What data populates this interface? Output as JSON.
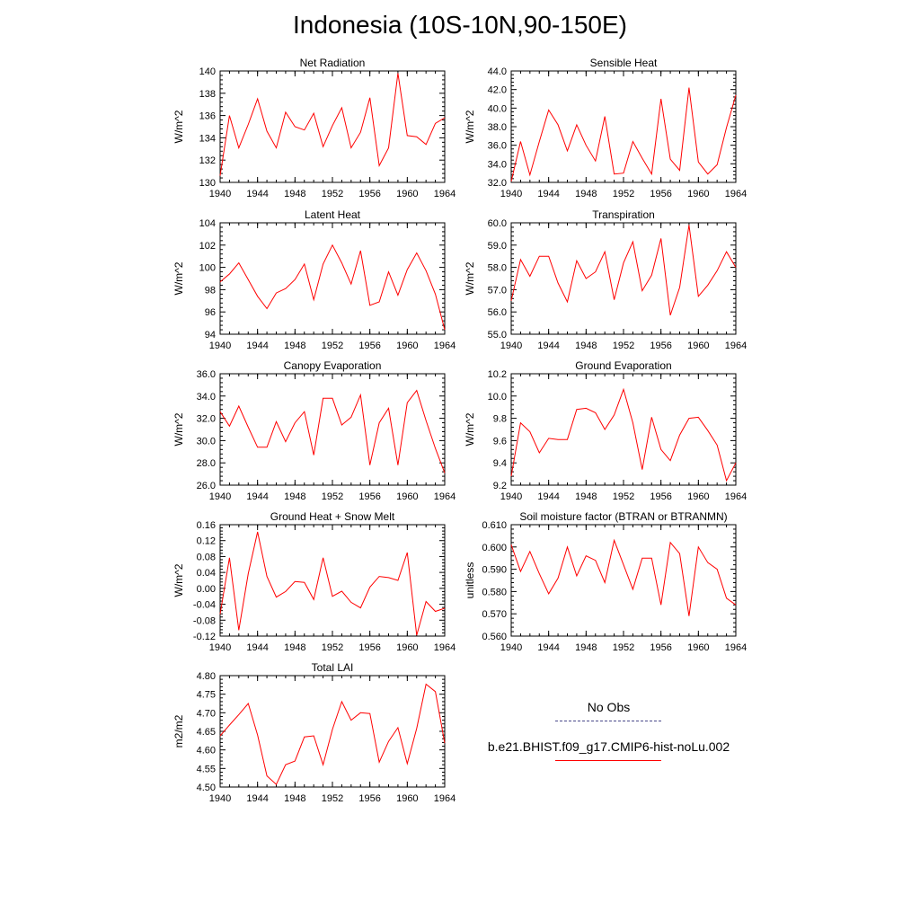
{
  "figure": {
    "title": "Indonesia (10S-10N,90-150E)"
  },
  "legend": [
    {
      "label": "No Obs",
      "style": "dashed",
      "color": "#4a4a8a"
    },
    {
      "label": "b.e21.BHIST.f09_g17.CMIP6-hist-noLu.002",
      "style": "solid",
      "color": "#ff0000"
    }
  ],
  "chart_data": [
    {
      "type": "line",
      "title": "Net Radiation",
      "ylabel": "W/m^2",
      "xlim": [
        1940,
        1964
      ],
      "ylim": [
        130,
        140
      ],
      "xticks": [
        "1940",
        "1944",
        "1948",
        "1952",
        "1956",
        "1960",
        "1964"
      ],
      "yticks": [
        "130",
        "132",
        "134",
        "136",
        "138",
        "140"
      ],
      "series": [
        {
          "color": "#ff0000",
          "x": [
            1940,
            1941,
            1942,
            1943,
            1944,
            1945,
            1946,
            1947,
            1948,
            1949,
            1950,
            1951,
            1952,
            1953,
            1954,
            1955,
            1956,
            1957,
            1958,
            1959,
            1960,
            1961,
            1962,
            1963,
            1964
          ],
          "values": [
            130.6,
            136.0,
            133.1,
            135.2,
            137.5,
            134.6,
            133.1,
            136.3,
            135.0,
            134.7,
            136.2,
            133.2,
            135.1,
            136.7,
            133.1,
            134.5,
            137.6,
            131.5,
            133.1,
            139.8,
            134.2,
            134.1,
            133.4,
            135.3,
            135.8
          ]
        }
      ]
    },
    {
      "type": "line",
      "title": "Sensible Heat",
      "ylabel": "W/m^2",
      "xlim": [
        1940,
        1964
      ],
      "ylim": [
        32,
        44
      ],
      "xticks": [
        "1940",
        "1944",
        "1948",
        "1952",
        "1956",
        "1960",
        "1964"
      ],
      "yticks": [
        "32.0",
        "34.0",
        "36.0",
        "38.0",
        "40.0",
        "42.0",
        "44.0"
      ],
      "series": [
        {
          "color": "#ff0000",
          "x": [
            1940,
            1941,
            1942,
            1943,
            1944,
            1945,
            1946,
            1947,
            1948,
            1949,
            1950,
            1951,
            1952,
            1953,
            1954,
            1955,
            1956,
            1957,
            1958,
            1959,
            1960,
            1961,
            1962,
            1963,
            1964
          ],
          "values": [
            32.1,
            36.4,
            32.8,
            36.4,
            39.8,
            38.2,
            35.4,
            38.2,
            36.0,
            34.3,
            39.1,
            32.9,
            33.0,
            36.4,
            34.6,
            32.9,
            41.0,
            34.5,
            33.3,
            42.2,
            34.2,
            32.9,
            33.9,
            37.9,
            41.4
          ]
        }
      ]
    },
    {
      "type": "line",
      "title": "Latent Heat",
      "ylabel": "W/m^2",
      "xlim": [
        1940,
        1964
      ],
      "ylim": [
        94,
        104
      ],
      "xticks": [
        "1940",
        "1944",
        "1948",
        "1952",
        "1956",
        "1960",
        "1964"
      ],
      "yticks": [
        "94",
        "96",
        "98",
        "100",
        "102",
        "104"
      ],
      "series": [
        {
          "color": "#ff0000",
          "x": [
            1940,
            1941,
            1942,
            1943,
            1944,
            1945,
            1946,
            1947,
            1948,
            1949,
            1950,
            1951,
            1952,
            1953,
            1954,
            1955,
            1956,
            1957,
            1958,
            1959,
            1960,
            1961,
            1962,
            1963,
            1964
          ],
          "values": [
            98.7,
            99.4,
            100.4,
            98.9,
            97.4,
            96.3,
            97.7,
            98.1,
            98.9,
            100.3,
            97.1,
            100.3,
            102.0,
            100.4,
            98.5,
            101.5,
            96.6,
            96.9,
            99.6,
            97.5,
            99.8,
            101.3,
            99.7,
            97.6,
            94.4
          ]
        }
      ]
    },
    {
      "type": "line",
      "title": "Transpiration",
      "ylabel": "W/m^2",
      "xlim": [
        1940,
        1964
      ],
      "ylim": [
        55,
        60
      ],
      "xticks": [
        "1940",
        "1944",
        "1948",
        "1952",
        "1956",
        "1960",
        "1964"
      ],
      "yticks": [
        "55.0",
        "56.0",
        "57.0",
        "58.0",
        "59.0",
        "60.0"
      ],
      "series": [
        {
          "color": "#ff0000",
          "x": [
            1940,
            1941,
            1942,
            1943,
            1944,
            1945,
            1946,
            1947,
            1948,
            1949,
            1950,
            1951,
            1952,
            1953,
            1954,
            1955,
            1956,
            1957,
            1958,
            1959,
            1960,
            1961,
            1962,
            1963,
            1964
          ],
          "values": [
            56.5,
            58.35,
            57.6,
            58.5,
            58.5,
            57.3,
            56.45,
            58.3,
            57.5,
            57.8,
            58.7,
            56.55,
            58.2,
            59.15,
            56.95,
            57.65,
            59.3,
            55.85,
            57.1,
            59.9,
            56.7,
            57.2,
            57.85,
            58.7,
            58.0
          ]
        }
      ]
    },
    {
      "type": "line",
      "title": "Canopy Evaporation",
      "ylabel": "W/m^2",
      "xlim": [
        1940,
        1964
      ],
      "ylim": [
        26,
        36
      ],
      "xticks": [
        "1940",
        "1944",
        "1948",
        "1952",
        "1956",
        "1960",
        "1964"
      ],
      "yticks": [
        "26.0",
        "28.0",
        "30.0",
        "32.0",
        "34.0",
        "36.0"
      ],
      "series": [
        {
          "color": "#ff0000",
          "x": [
            1940,
            1941,
            1942,
            1943,
            1944,
            1945,
            1946,
            1947,
            1948,
            1949,
            1950,
            1951,
            1952,
            1953,
            1954,
            1955,
            1956,
            1957,
            1958,
            1959,
            1960,
            1961,
            1962,
            1963,
            1964
          ],
          "values": [
            32.6,
            31.3,
            33.1,
            31.2,
            29.4,
            29.4,
            31.7,
            29.9,
            31.6,
            32.6,
            28.7,
            33.8,
            33.8,
            31.4,
            32.1,
            34.1,
            27.8,
            31.6,
            32.9,
            27.8,
            33.4,
            34.5,
            31.8,
            29.3,
            27.1
          ]
        }
      ]
    },
    {
      "type": "line",
      "title": "Ground Evaporation",
      "ylabel": "W/m^2",
      "xlim": [
        1940,
        1964
      ],
      "ylim": [
        9.2,
        10.2
      ],
      "xticks": [
        "1940",
        "1944",
        "1948",
        "1952",
        "1956",
        "1960",
        "1964"
      ],
      "yticks": [
        "9.2",
        "9.4",
        "9.6",
        "9.8",
        "10.0",
        "10.2"
      ],
      "series": [
        {
          "color": "#ff0000",
          "x": [
            1940,
            1941,
            1942,
            1943,
            1944,
            1945,
            1946,
            1947,
            1948,
            1949,
            1950,
            1951,
            1952,
            1953,
            1954,
            1955,
            1956,
            1957,
            1958,
            1959,
            1960,
            1961,
            1962,
            1963,
            1964
          ],
          "values": [
            9.28,
            9.76,
            9.68,
            9.49,
            9.62,
            9.61,
            9.61,
            9.88,
            9.89,
            9.85,
            9.7,
            9.83,
            10.06,
            9.76,
            9.34,
            9.81,
            9.52,
            9.42,
            9.65,
            9.8,
            9.81,
            9.69,
            9.56,
            9.24,
            9.4
          ]
        }
      ]
    },
    {
      "type": "line",
      "title": "Ground Heat + Snow Melt",
      "ylabel": "W/m^2",
      "xlim": [
        1940,
        1964
      ],
      "ylim": [
        -0.12,
        0.16
      ],
      "xticks": [
        "1940",
        "1944",
        "1948",
        "1952",
        "1956",
        "1960",
        "1964"
      ],
      "yticks": [
        "-0.12",
        "-0.08",
        "-0.04",
        "0.00",
        "0.04",
        "0.08",
        "0.12",
        "0.16"
      ],
      "series": [
        {
          "color": "#ff0000",
          "x": [
            1940,
            1941,
            1942,
            1943,
            1944,
            1945,
            1946,
            1947,
            1948,
            1949,
            1950,
            1951,
            1952,
            1953,
            1954,
            1955,
            1956,
            1957,
            1958,
            1959,
            1960,
            1961,
            1962,
            1963,
            1964
          ],
          "values": [
            -0.065,
            0.077,
            -0.105,
            0.037,
            0.142,
            0.03,
            -0.022,
            -0.008,
            0.017,
            0.015,
            -0.028,
            0.077,
            -0.02,
            -0.007,
            -0.035,
            -0.049,
            0.003,
            0.03,
            0.027,
            0.02,
            0.09,
            -0.118,
            -0.033,
            -0.058,
            -0.05
          ]
        }
      ]
    },
    {
      "type": "line",
      "title": "Soil moisture factor (BTRAN or BTRANMN)",
      "ylabel": "unitless",
      "xlim": [
        1940,
        1964
      ],
      "ylim": [
        0.56,
        0.61
      ],
      "xticks": [
        "1940",
        "1944",
        "1948",
        "1952",
        "1956",
        "1960",
        "1964"
      ],
      "yticks": [
        "0.560",
        "0.570",
        "0.580",
        "0.590",
        "0.600",
        "0.610"
      ],
      "series": [
        {
          "color": "#ff0000",
          "x": [
            1940,
            1941,
            1942,
            1943,
            1944,
            1945,
            1946,
            1947,
            1948,
            1949,
            1950,
            1951,
            1952,
            1953,
            1954,
            1955,
            1956,
            1957,
            1958,
            1959,
            1960,
            1961,
            1962,
            1963,
            1964
          ],
          "values": [
            0.601,
            0.589,
            0.598,
            0.588,
            0.579,
            0.586,
            0.6,
            0.587,
            0.596,
            0.594,
            0.584,
            0.603,
            0.592,
            0.581,
            0.595,
            0.595,
            0.574,
            0.602,
            0.597,
            0.569,
            0.6,
            0.593,
            0.59,
            0.577,
            0.574
          ]
        }
      ]
    },
    {
      "type": "line",
      "title": "Total LAI",
      "ylabel": "m2/m2",
      "xlim": [
        1940,
        1964
      ],
      "ylim": [
        4.5,
        4.8
      ],
      "xticks": [
        "1940",
        "1944",
        "1948",
        "1952",
        "1956",
        "1960",
        "1964"
      ],
      "yticks": [
        "4.50",
        "4.55",
        "4.60",
        "4.65",
        "4.70",
        "4.75",
        "4.80"
      ],
      "series": [
        {
          "color": "#ff0000",
          "x": [
            1940,
            1941,
            1942,
            1943,
            1944,
            1945,
            1946,
            1947,
            1948,
            1949,
            1950,
            1951,
            1952,
            1953,
            1954,
            1955,
            1956,
            1957,
            1958,
            1959,
            1960,
            1961,
            1962,
            1963,
            1964
          ],
          "values": [
            4.638,
            4.667,
            4.695,
            4.725,
            4.64,
            4.53,
            4.507,
            4.56,
            4.57,
            4.635,
            4.638,
            4.56,
            4.655,
            4.73,
            4.68,
            4.7,
            4.698,
            4.567,
            4.623,
            4.66,
            4.563,
            4.658,
            4.777,
            4.757,
            4.618
          ]
        }
      ]
    }
  ]
}
